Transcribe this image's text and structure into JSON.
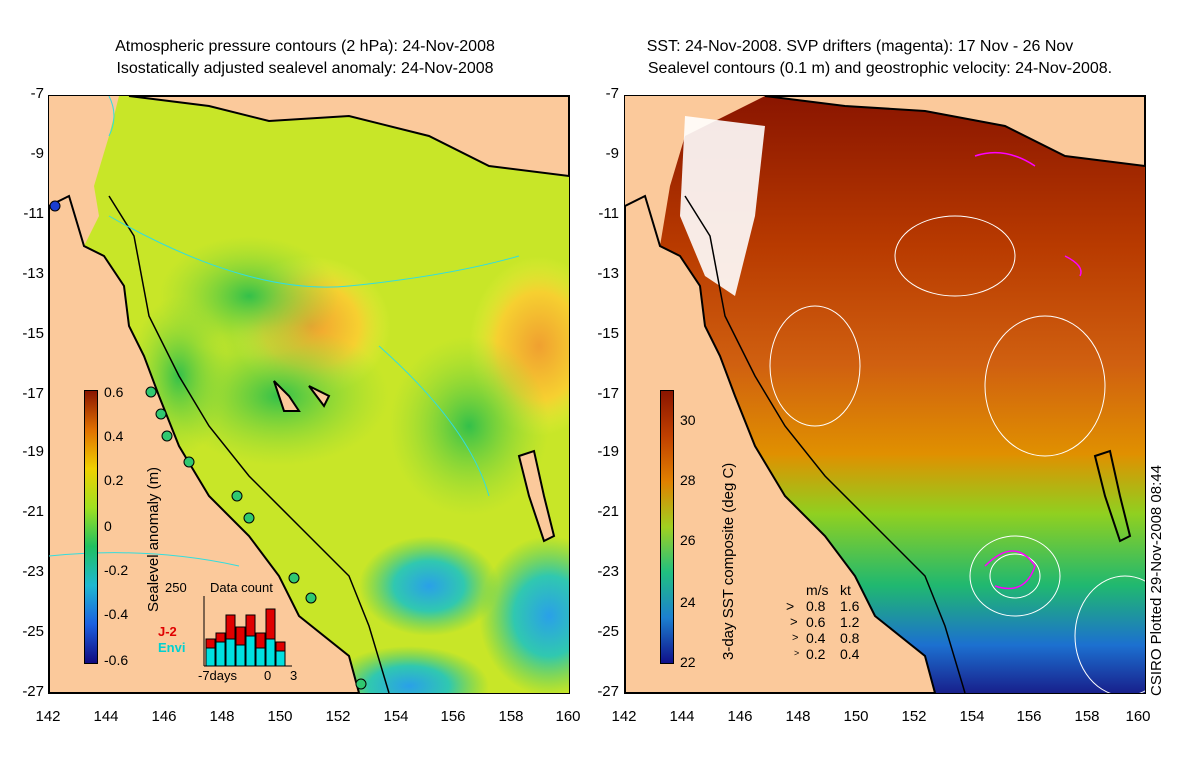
{
  "left_panel": {
    "title_line1": "Atmospheric pressure contours (2 hPa): 24-Nov-2008",
    "title_line2": "Isostatically adjusted sealevel anomaly: 24-Nov-2008",
    "colorbar_label": "Sealevel anomaly (m)",
    "colorbar_ticks": [
      "0.6",
      "0.4",
      "0.2",
      "0",
      "-0.2",
      "-0.4",
      "-0.6"
    ],
    "inset": {
      "title": "Data count",
      "ymax_label": "250",
      "legend_j2": "J-2",
      "legend_envi": "Envi",
      "x_labels": [
        "-7days",
        "0",
        "3"
      ],
      "j2_color": "#e00000",
      "envi_color": "#00e0e0",
      "bars_total": [
        0.45,
        0.55,
        0.85,
        0.65,
        0.85,
        0.55,
        0.95,
        0.4
      ],
      "bars_envi": [
        0.3,
        0.4,
        0.45,
        0.35,
        0.5,
        0.3,
        0.45,
        0.25
      ]
    }
  },
  "right_panel": {
    "title_line1": "SST: 24-Nov-2008. SVP drifters (magenta): 17 Nov - 26 Nov",
    "title_line2": "Sealevel contours (0.1 m) and geostrophic velocity: 24-Nov-2008.",
    "colorbar_label": "3-day SST composite (deg C)",
    "colorbar_ticks": [
      "30",
      "28",
      "26",
      "24",
      "22"
    ],
    "velocity_legend": {
      "header_ms": "m/s",
      "header_kt": "kt",
      "rows": [
        [
          "0.8",
          "1.6"
        ],
        [
          "0.6",
          "1.2"
        ],
        [
          "0.4",
          "0.8"
        ],
        [
          "0.2",
          "0.4"
        ]
      ]
    }
  },
  "axes": {
    "y_ticks": [
      "-7",
      "-9",
      "-11",
      "-13",
      "-15",
      "-17",
      "-19",
      "-21",
      "-23",
      "-25",
      "-27"
    ],
    "x_ticks": [
      "142",
      "144",
      "146",
      "148",
      "150",
      "152",
      "154",
      "156",
      "158",
      "160"
    ],
    "lat_range": [
      -27,
      -7
    ],
    "lon_range": [
      142,
      160
    ]
  },
  "credit": "CSIRO Plotted 29-Nov-2008 08:44",
  "colors": {
    "land": "#fbc99b",
    "coast": "#000000",
    "drifters": "#ff00ff",
    "pressure_contours": "#33dddd"
  }
}
